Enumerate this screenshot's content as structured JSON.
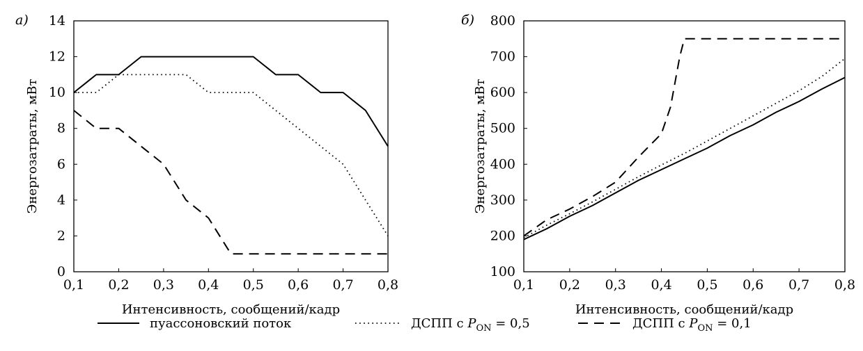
{
  "chart_data": [
    {
      "type": "line",
      "panel_label": "а)",
      "xlabel": "Интенсивность, сообщений/кадр",
      "ylabel": "Энергозатраты, мВт",
      "xlim": [
        0.1,
        0.8
      ],
      "ylim": [
        0,
        14
      ],
      "xticks": [
        "0,1",
        "0,2",
        "0,3",
        "0,4",
        "0,5",
        "0,6",
        "0,7",
        "0,8"
      ],
      "yticks": [
        "0",
        "2",
        "4",
        "6",
        "8",
        "10",
        "12",
        "14"
      ],
      "grid": false,
      "series": [
        {
          "key": "poisson",
          "style": "solid",
          "x": [
            0.1,
            0.15,
            0.2,
            0.25,
            0.3,
            0.35,
            0.4,
            0.45,
            0.5,
            0.55,
            0.6,
            0.65,
            0.7,
            0.75,
            0.8
          ],
          "y": [
            10,
            11,
            11,
            12,
            12,
            12,
            12,
            12,
            12,
            11,
            11,
            10,
            10,
            9,
            7
          ]
        },
        {
          "key": "dspp05",
          "style": "dotted",
          "x": [
            0.1,
            0.15,
            0.2,
            0.25,
            0.3,
            0.35,
            0.4,
            0.45,
            0.5,
            0.55,
            0.6,
            0.65,
            0.7,
            0.75,
            0.8
          ],
          "y": [
            10,
            10,
            11,
            11,
            11,
            11,
            10,
            10,
            10,
            9,
            8,
            7,
            6,
            4,
            2
          ]
        },
        {
          "key": "dspp01",
          "style": "dashed",
          "x": [
            0.1,
            0.15,
            0.2,
            0.25,
            0.3,
            0.35,
            0.4,
            0.45,
            0.5,
            0.55,
            0.6,
            0.65,
            0.7,
            0.75,
            0.8
          ],
          "y": [
            9,
            8,
            8,
            7,
            6,
            4,
            3,
            1,
            1,
            1,
            1,
            1,
            1,
            1,
            1
          ]
        }
      ]
    },
    {
      "type": "line",
      "panel_label": "б)",
      "xlabel": "Интенсивность, сообщений/кадр",
      "ylabel": "Энергозатраты, мВт",
      "xlim": [
        0.1,
        0.8
      ],
      "ylim": [
        100,
        800
      ],
      "xticks": [
        "0,1",
        "0,2",
        "0,3",
        "0,4",
        "0,5",
        "0,6",
        "0,7",
        "0,8"
      ],
      "yticks": [
        "100",
        "200",
        "300",
        "400",
        "500",
        "600",
        "700",
        "800"
      ],
      "grid": false,
      "series": [
        {
          "key": "poisson",
          "style": "solid",
          "x": [
            0.1,
            0.15,
            0.2,
            0.25,
            0.3,
            0.35,
            0.4,
            0.45,
            0.5,
            0.55,
            0.6,
            0.65,
            0.7,
            0.75,
            0.8
          ],
          "y": [
            190,
            220,
            255,
            285,
            320,
            355,
            385,
            415,
            445,
            480,
            510,
            545,
            575,
            610,
            642
          ]
        },
        {
          "key": "dspp05",
          "style": "dotted",
          "x": [
            0.1,
            0.15,
            0.2,
            0.25,
            0.3,
            0.35,
            0.4,
            0.45,
            0.5,
            0.55,
            0.6,
            0.65,
            0.7,
            0.75,
            0.8
          ],
          "y": [
            195,
            230,
            262,
            295,
            330,
            365,
            398,
            430,
            465,
            500,
            535,
            570,
            605,
            645,
            695
          ]
        },
        {
          "key": "dspp01",
          "style": "dashed",
          "x": [
            0.1,
            0.15,
            0.2,
            0.25,
            0.3,
            0.35,
            0.4,
            0.42,
            0.44,
            0.45,
            0.5,
            0.55,
            0.6,
            0.65,
            0.7,
            0.75,
            0.8
          ],
          "y": [
            200,
            245,
            275,
            310,
            350,
            420,
            485,
            560,
            700,
            750,
            750,
            750,
            750,
            750,
            750,
            750,
            750
          ]
        }
      ]
    }
  ],
  "legend": [
    {
      "key": "poisson",
      "style": "solid",
      "label": "пуассоновский поток"
    },
    {
      "key": "dspp05",
      "style": "dotted",
      "label_prefix": "ДСПП с ",
      "label_var": "P",
      "label_sub": "ON",
      "label_suffix": " = 0,5"
    },
    {
      "key": "dspp01",
      "style": "dashed",
      "label_prefix": "ДСПП с ",
      "label_var": "P",
      "label_sub": "ON",
      "label_suffix": " = 0,1"
    }
  ]
}
